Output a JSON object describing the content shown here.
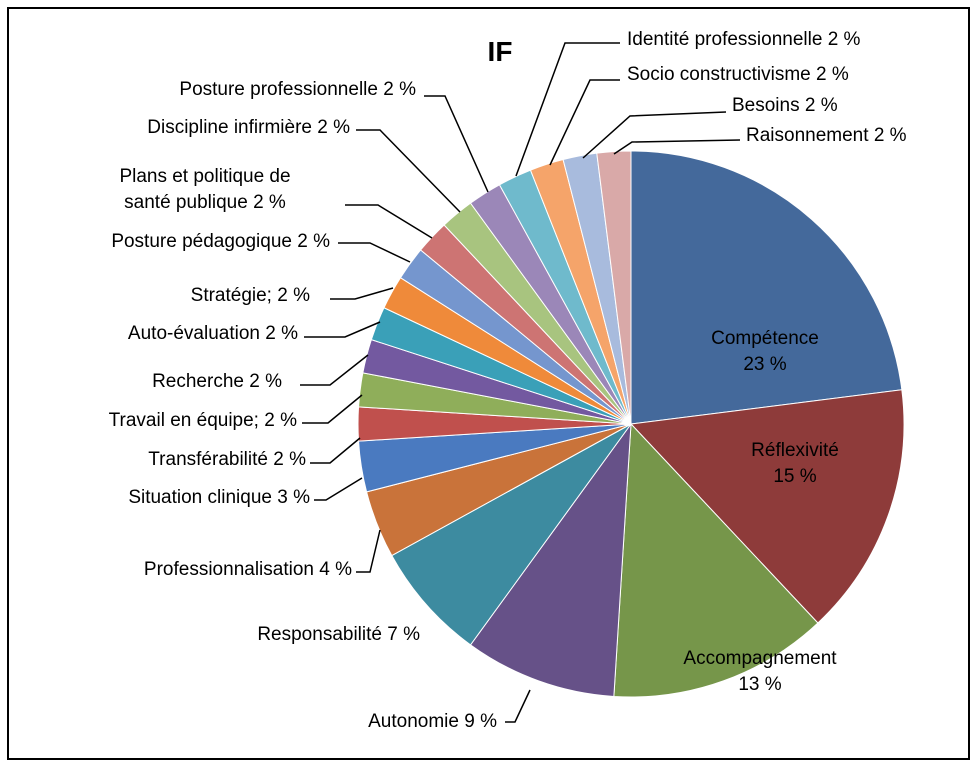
{
  "chart_data": {
    "type": "pie",
    "title": "IF",
    "categories": [
      "Compétence",
      "Réflexivité",
      "Accompagnement",
      "Autonomie",
      "Responsabilité",
      "Professionnalisation",
      "Situation clinique",
      "Transférabilité",
      "Travail en équipe;",
      "Recherche",
      "Auto-évaluation",
      "Stratégie;",
      "Posture pédagogique",
      "Plans et politique de santé publique",
      "Discipline infirmière",
      "Posture professionnelle",
      "Identité professionnelle",
      "Socio constructivisme",
      "Besoins",
      "Raisonnement"
    ],
    "values": [
      23,
      15,
      13,
      9,
      7,
      4,
      3,
      2,
      2,
      2,
      2,
      2,
      2,
      2,
      2,
      2,
      2,
      2,
      2,
      2
    ],
    "value_labels": [
      "23 %",
      "15 %",
      "13 %",
      "9 %",
      "7 %",
      "4 %",
      "3 %",
      "2 %",
      "2 %",
      "2 %",
      "2 %",
      "2 %",
      "2 %",
      "2 %",
      "2 %",
      "2 %",
      "2 %",
      "2 %",
      "2 %",
      "2 %"
    ],
    "colors": [
      "#44699b",
      "#8e3b3a",
      "#76964a",
      "#665188",
      "#3d8ba0",
      "#c9733a",
      "#4a7ac0",
      "#c0504d",
      "#8fae5a",
      "#7359a0",
      "#3aa0b8",
      "#ef8a3a",
      "#7596ce",
      "#cd7473",
      "#a8c47f",
      "#9b87b8",
      "#6fbacc",
      "#f5a46a",
      "#a8bbdd",
      "#d9a9a8"
    ]
  }
}
